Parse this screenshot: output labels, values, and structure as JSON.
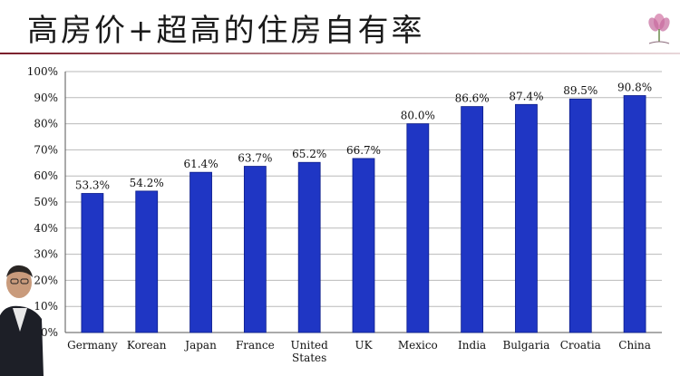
{
  "slide": {
    "title": "高房价+超高的住房自有率"
  },
  "colors": {
    "bar": "#1f36c4",
    "bar_edge": "#0c1d8a",
    "grid": "#b9b9b9",
    "axis": "#555555",
    "text": "#111111",
    "accent_rule": "#7a1d2a"
  },
  "chart_data": {
    "type": "bar",
    "title": "",
    "xlabel": "",
    "ylabel": "",
    "categories": [
      "Germany",
      "Korean",
      "Japan",
      "France",
      "United States",
      "UK",
      "Mexico",
      "India",
      "Bulgaria",
      "Croatia",
      "China"
    ],
    "category_lines": [
      [
        "Germany"
      ],
      [
        "Korean"
      ],
      [
        "Japan"
      ],
      [
        "France"
      ],
      [
        "United",
        "States"
      ],
      [
        "UK"
      ],
      [
        "Mexico"
      ],
      [
        "India"
      ],
      [
        "Bulgaria"
      ],
      [
        "Croatia"
      ],
      [
        "China"
      ]
    ],
    "values": [
      53.3,
      54.2,
      61.4,
      63.7,
      65.2,
      66.7,
      80.0,
      86.6,
      87.4,
      89.5,
      90.8
    ],
    "data_labels": [
      "53.3%",
      "54.2%",
      "61.4%",
      "63.7%",
      "65.2%",
      "66.7%",
      "80.0%",
      "86.6%",
      "87.4%",
      "89.5%",
      "90.8%"
    ],
    "yticks": [
      0,
      10,
      20,
      30,
      40,
      50,
      60,
      70,
      80,
      90,
      100
    ],
    "ytick_labels": [
      "0%",
      "10%",
      "20%",
      "30%",
      "40%",
      "50%",
      "60%",
      "70%",
      "80%",
      "90%",
      "100%"
    ],
    "ylim": [
      0,
      100
    ],
    "grid": true,
    "legend": false
  }
}
